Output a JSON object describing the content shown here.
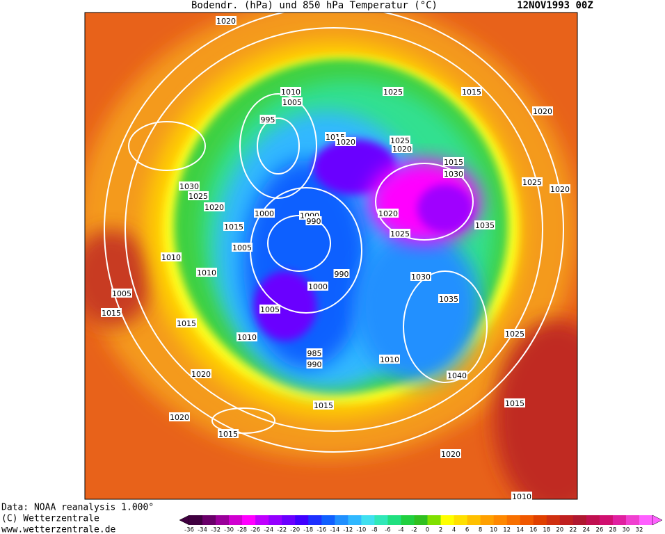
{
  "header": {
    "title": "Bodendr. (hPa) und 850 hPa Temperatur (°C)",
    "date": "12NOV1993 00Z"
  },
  "footer": [
    "Data: NOAA reanalysis 1.000°",
    "(C) Wetterzentrale",
    "www.wetterzentrale.de"
  ],
  "isobar_labels": [
    "1020",
    "1010",
    "1005",
    "995",
    "1025",
    "1015",
    "1020",
    "1015",
    "1020",
    "1025",
    "1020",
    "1015",
    "1030",
    "1025",
    "1020",
    "1030",
    "1025",
    "1020",
    "1015",
    "1000",
    "1000",
    "990",
    "1020",
    "1025",
    "1035",
    "1005",
    "1010",
    "1010",
    "990",
    "1000",
    "1030",
    "1035",
    "1005",
    "1015",
    "1005",
    "1015",
    "1010",
    "1025",
    "985",
    "990",
    "1010",
    "1040",
    "1020",
    "1015",
    "1015",
    "1020",
    "1015",
    "1020",
    "1010"
  ],
  "colorbar": {
    "labels": [
      "-36",
      "-34",
      "-32",
      "-30",
      "-28",
      "-26",
      "-24",
      "-22",
      "-20",
      "-18",
      "-16",
      "-14",
      "-12",
      "-10",
      "-8",
      "-6",
      "-4",
      "-2",
      "0",
      "2",
      "4",
      "6",
      "8",
      "10",
      "12",
      "14",
      "16",
      "18",
      "20",
      "22",
      "24",
      "26",
      "28",
      "30",
      "32"
    ],
    "colors": [
      "#400040",
      "#6a006a",
      "#9a009a",
      "#d000d0",
      "#ff00ff",
      "#c000ff",
      "#9400ff",
      "#6a00ff",
      "#4000ff",
      "#1e30ff",
      "#1060ff",
      "#2090ff",
      "#30b8ff",
      "#40e0f0",
      "#30e8b8",
      "#20e080",
      "#20d040",
      "#30c020",
      "#80e000",
      "#ffff00",
      "#ffe000",
      "#ffc000",
      "#ffa000",
      "#ff8800",
      "#f87000",
      "#f05800",
      "#e04000",
      "#d03010",
      "#c02020",
      "#b01830",
      "#c01050",
      "#d01070",
      "#e020a0",
      "#f040d0",
      "#ff60ff"
    ]
  }
}
